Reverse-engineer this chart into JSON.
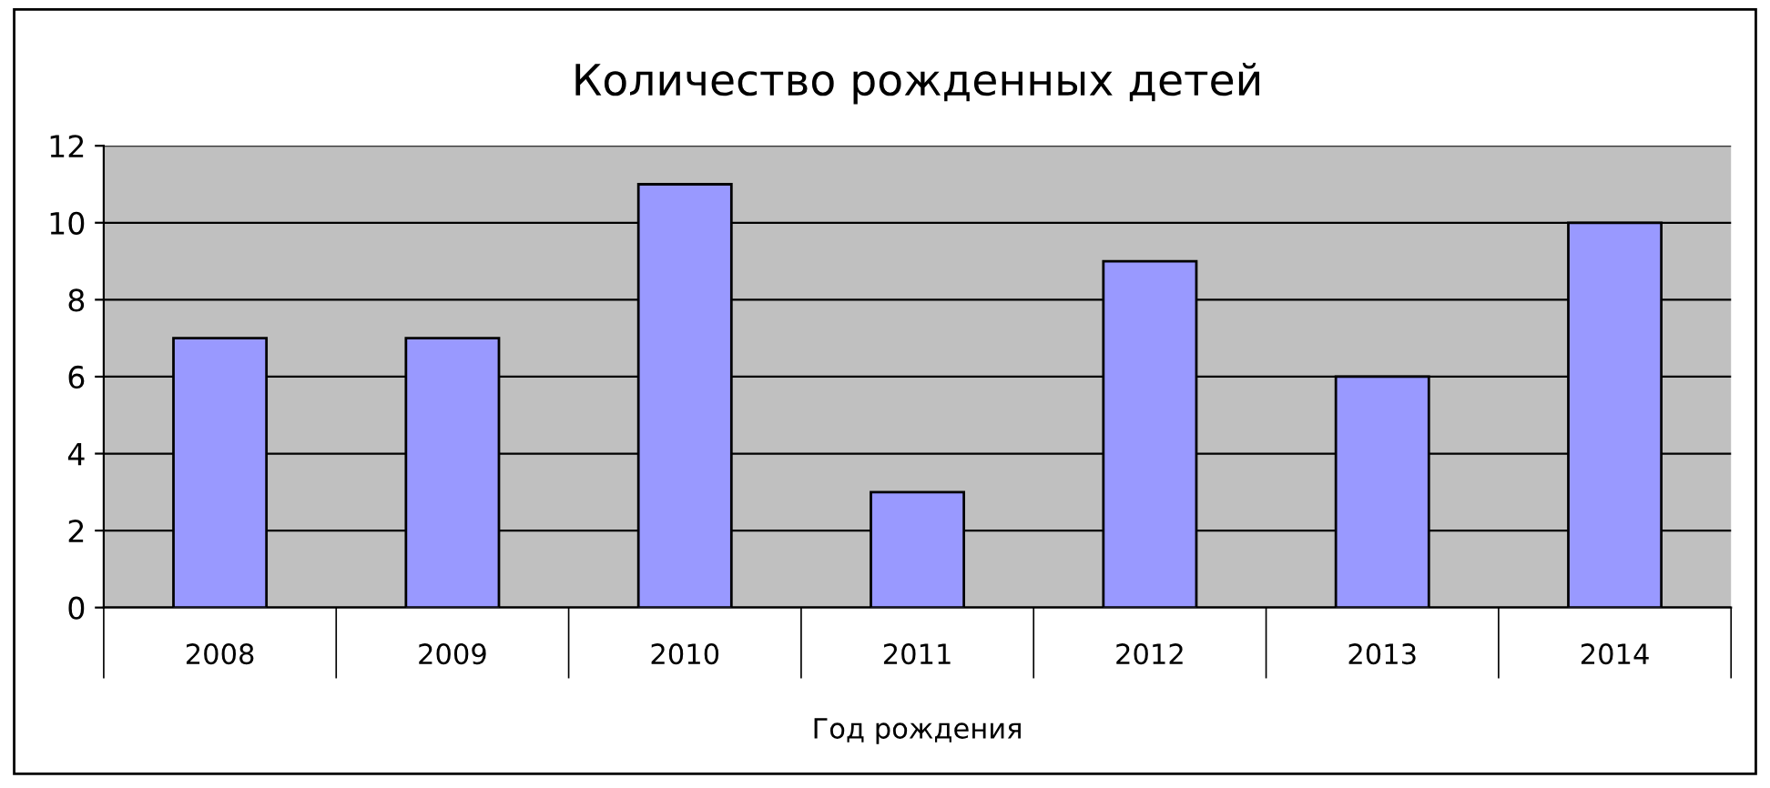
{
  "chart_data": {
    "type": "bar",
    "title": "Количество рожденных детей",
    "xlabel": "Год рождения",
    "categories": [
      "2008",
      "2009",
      "2010",
      "2011",
      "2012",
      "2013",
      "2014"
    ],
    "values": [
      7,
      7,
      11,
      3,
      9,
      6,
      10
    ],
    "color": "#9999ff",
    "ylim": [
      0,
      12
    ],
    "yticks": [
      0,
      2,
      4,
      6,
      8,
      10,
      12
    ],
    "grid": "y",
    "legend": false
  }
}
